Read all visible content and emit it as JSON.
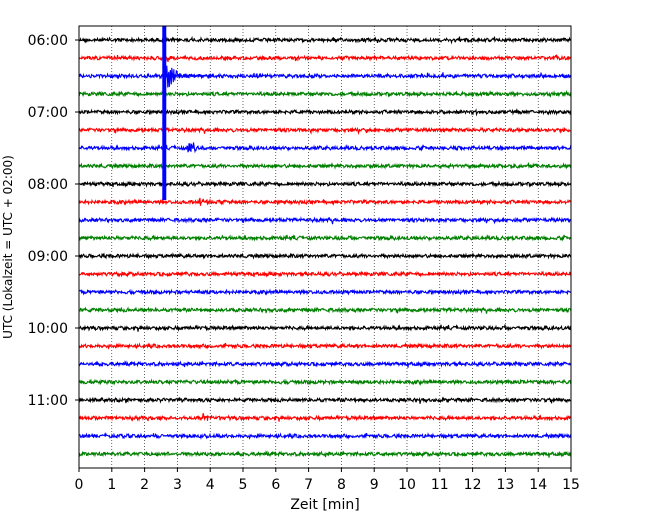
{
  "chart_data": {
    "type": "line",
    "title": "",
    "xlabel": "Zeit  [min]",
    "ylabel": "UTC (Lokalzeit = UTC + 02:00)",
    "xlim": [
      0,
      15
    ],
    "x_ticks": [
      "0",
      "1",
      "2",
      "3",
      "4",
      "5",
      "6",
      "7",
      "8",
      "9",
      "10",
      "11",
      "12",
      "13",
      "14",
      "15"
    ],
    "y_ticks": [
      {
        "label": "06:00",
        "trace": 0
      },
      {
        "label": "07:00",
        "trace": 4
      },
      {
        "label": "08:00",
        "trace": 8
      },
      {
        "label": "09:00",
        "trace": 12
      },
      {
        "label": "10:00",
        "trace": 16
      },
      {
        "label": "11:00",
        "trace": 20
      }
    ],
    "grid": {
      "vertical": true,
      "style": "dotted"
    },
    "trace_interval_minutes": 15,
    "trace_count": 24,
    "trace_colors": [
      "#000000",
      "#ff0000",
      "#0000ff",
      "#008000"
    ],
    "events": [
      {
        "trace": 2,
        "x": 2.6,
        "amplitude": "very large",
        "note": "major event, coda spans traces 0-8"
      },
      {
        "trace": 6,
        "x": 3.35,
        "amplitude": "medium"
      },
      {
        "trace": 9,
        "x": 3.7,
        "amplitude": "small"
      },
      {
        "trace": 21,
        "x": 3.8,
        "amplitude": "small"
      }
    ]
  }
}
